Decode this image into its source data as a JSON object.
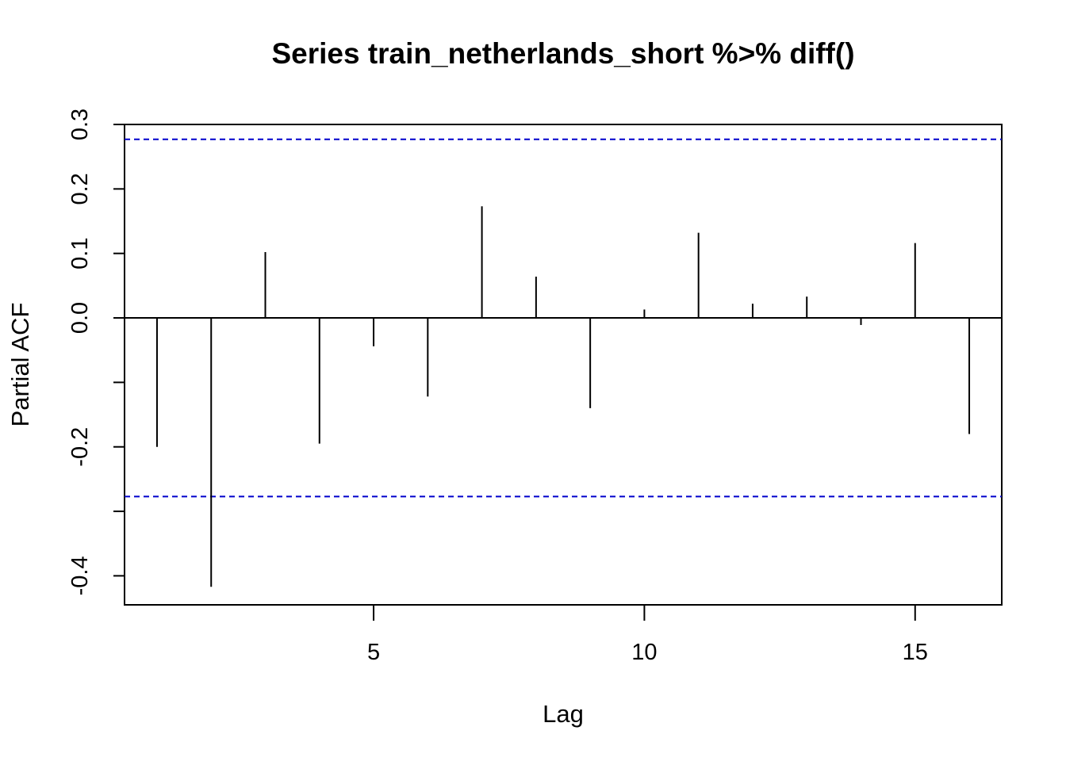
{
  "chart_data": {
    "type": "bar",
    "title": "Series  train_netherlands_short %>% diff()",
    "xlabel": "Lag",
    "ylabel": "Partial ACF",
    "xlim": [
      0.4,
      16.6
    ],
    "ylim": [
      -0.445,
      0.3
    ],
    "x_ticks": [
      5,
      10,
      15
    ],
    "x_tick_labels": [
      "5",
      "10",
      "15"
    ],
    "y_ticks": [
      -0.4,
      -0.3,
      -0.2,
      -0.1,
      0.0,
      0.1,
      0.2,
      0.3
    ],
    "y_tick_labels": [
      "-0.4",
      "",
      "-0.2",
      "",
      "0.0",
      "0.1",
      "0.2",
      "0.3"
    ],
    "lags": [
      1,
      2,
      3,
      4,
      5,
      6,
      7,
      8,
      9,
      10,
      11,
      12,
      13,
      14,
      15,
      16
    ],
    "values": [
      -0.2,
      -0.417,
      0.102,
      -0.195,
      -0.044,
      -0.122,
      0.173,
      0.064,
      -0.14,
      0.013,
      0.132,
      0.022,
      0.033,
      -0.011,
      0.116,
      -0.18
    ],
    "confidence_bound": 0.277,
    "zero_line": 0.0,
    "bar_color": "#000000",
    "ci_color": "#0000cc",
    "grid": false,
    "legend": "none"
  }
}
